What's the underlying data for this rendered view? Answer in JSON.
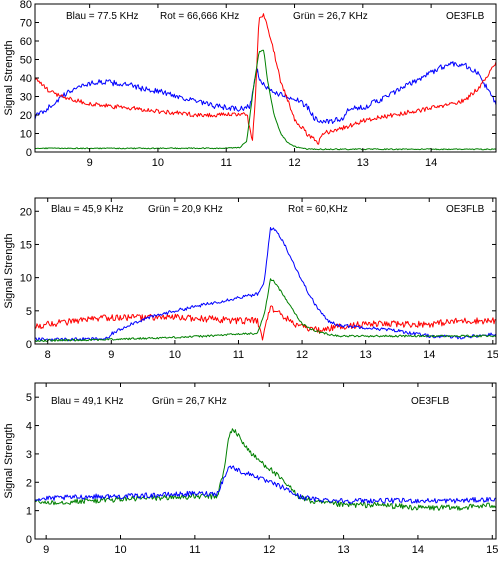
{
  "chart_data": [
    {
      "type": "line",
      "ylabel": "Signal Strength",
      "xlim": [
        8.2,
        14.95
      ],
      "ylim": [
        0,
        80
      ],
      "xticks": [
        9,
        10,
        11,
        12,
        13,
        14
      ],
      "yticks": [
        0,
        10,
        20,
        30,
        40,
        50,
        60,
        70,
        80
      ],
      "annotations": [
        "Blau = 77.5 KHz",
        "Rot = 66,666 KHz",
        "Grün = 26,7 KHz",
        "OE3FLB"
      ],
      "series": [
        {
          "color": "#0000ff",
          "noise": 1.5,
          "x": [
            8.2,
            8.4,
            8.6,
            8.8,
            9.0,
            9.2,
            9.4,
            9.6,
            9.8,
            10.0,
            10.2,
            10.4,
            10.6,
            10.8,
            11.0,
            11.2,
            11.35,
            11.45,
            11.5,
            11.6,
            11.8,
            12.0,
            12.2,
            12.3,
            12.5,
            12.7,
            12.8,
            13.0,
            13.3,
            13.6,
            13.9,
            14.1,
            14.3,
            14.5,
            14.7,
            14.95
          ],
          "y": [
            19,
            24,
            30,
            35,
            37,
            38,
            37,
            36,
            34,
            33,
            31,
            29,
            27,
            25,
            24,
            23,
            25,
            45,
            38,
            34,
            31,
            29,
            24,
            18,
            16,
            18,
            23,
            24,
            29,
            35,
            41,
            45,
            48,
            47,
            42,
            26
          ]
        },
        {
          "color": "#ff0000",
          "noise": 1.2,
          "x": [
            8.2,
            8.4,
            8.6,
            8.8,
            9.0,
            9.2,
            9.5,
            9.8,
            10.0,
            10.3,
            10.6,
            11.0,
            11.3,
            11.38,
            11.42,
            11.48,
            11.55,
            11.65,
            11.8,
            12.0,
            12.2,
            12.35,
            12.4,
            12.6,
            12.8,
            13.0,
            13.3,
            13.6,
            13.9,
            14.2,
            14.5,
            14.7,
            14.95
          ],
          "y": [
            40,
            33,
            30,
            28,
            26,
            25,
            24,
            23,
            22,
            21,
            20,
            20,
            21,
            5,
            25,
            72,
            74,
            62,
            38,
            18,
            9,
            5,
            10,
            12,
            14,
            17,
            19,
            21,
            23,
            25,
            28,
            35,
            48
          ]
        },
        {
          "color": "#008000",
          "noise": 0.3,
          "x": [
            8.2,
            9.0,
            10.0,
            10.8,
            11.0,
            11.2,
            11.3,
            11.4,
            11.48,
            11.55,
            11.6,
            11.7,
            11.8,
            11.9,
            12.0,
            12.1,
            12.2,
            13.0,
            14.0,
            14.95
          ],
          "y": [
            2,
            2,
            2,
            2,
            2,
            2.5,
            6,
            35,
            54,
            55,
            40,
            20,
            10,
            5,
            3,
            2,
            1.5,
            1.5,
            1.5,
            1.5
          ]
        }
      ]
    },
    {
      "type": "line",
      "ylabel": "Signal Strength",
      "xlim": [
        7.8,
        15.05
      ],
      "ylim": [
        0,
        22
      ],
      "xticks": [
        8,
        9,
        10,
        11,
        12,
        13,
        14,
        15
      ],
      "yticks": [
        0,
        5,
        10,
        15,
        20
      ],
      "annotations": [
        "Blau =  45,9 KHz",
        "Grün = 20,9 KHz",
        "Rot = 60,KHz",
        "OE3FLB"
      ],
      "series": [
        {
          "color": "#ff0000",
          "noise": 0.5,
          "x": [
            7.8,
            8.0,
            8.5,
            9.0,
            9.5,
            10.0,
            10.5,
            11.0,
            11.3,
            11.38,
            11.42,
            11.5,
            11.6,
            11.8,
            12.0,
            12.3,
            12.5,
            13.0,
            13.5,
            14.0,
            14.5,
            15.05
          ],
          "y": [
            2.5,
            3,
            3.5,
            4,
            4,
            4,
            3.8,
            3.5,
            3.5,
            0.5,
            3,
            5.5,
            5,
            3.5,
            2.5,
            2,
            2.5,
            3,
            3,
            3,
            3.5,
            3.5
          ]
        },
        {
          "color": "#0000ff",
          "noise": 0.25,
          "x": [
            7.8,
            8.5,
            8.95,
            9.0,
            9.3,
            9.6,
            10.0,
            10.5,
            11.0,
            11.3,
            11.4,
            11.45,
            11.5,
            11.6,
            11.7,
            11.8,
            12.0,
            12.2,
            12.4,
            12.6,
            13.0,
            13.5,
            14.0,
            14.5,
            15.05
          ],
          "y": [
            0.7,
            0.7,
            0.8,
            1.5,
            3,
            4,
            5,
            6,
            7,
            7.5,
            9,
            13,
            17.5,
            17,
            15.5,
            13.5,
            9.5,
            6,
            3.5,
            2.8,
            2.5,
            2,
            1.2,
            1,
            1.5
          ]
        },
        {
          "color": "#008000",
          "noise": 0.15,
          "x": [
            7.8,
            8.5,
            9.0,
            10.0,
            10.5,
            11.0,
            11.3,
            11.42,
            11.5,
            11.55,
            11.7,
            11.9,
            12.0,
            12.2,
            12.4,
            12.6,
            13.0,
            14.0,
            15.05
          ],
          "y": [
            0.5,
            0.6,
            0.7,
            1,
            1.2,
            1.5,
            1.6,
            5,
            9.8,
            9.5,
            7.5,
            4.5,
            3,
            2,
            1.5,
            1.2,
            1.2,
            1.2,
            1.2
          ]
        }
      ]
    },
    {
      "type": "line",
      "ylabel": "Signal Strength",
      "xlim": [
        8.85,
        15.05
      ],
      "ylim": [
        0,
        5.5
      ],
      "xticks": [
        9,
        10,
        11,
        12,
        13,
        14,
        15
      ],
      "yticks": [
        0,
        1,
        2,
        3,
        4,
        5
      ],
      "annotations": [
        "Blau = 49,1 KHz",
        "Grün = 26,7 KHz",
        "OE3FLB"
      ],
      "series": [
        {
          "color": "#008000",
          "noise": 0.1,
          "x": [
            8.85,
            9.2,
            9.6,
            10.0,
            10.5,
            11.0,
            11.3,
            11.4,
            11.45,
            11.5,
            11.6,
            11.7,
            11.8,
            11.9,
            12.0,
            12.2,
            12.4,
            12.6,
            13.0,
            13.5,
            14.0,
            14.5,
            15.05
          ],
          "y": [
            1.3,
            1.3,
            1.35,
            1.4,
            1.45,
            1.5,
            1.5,
            2.5,
            3.5,
            3.9,
            3.6,
            3.2,
            2.9,
            2.7,
            2.5,
            2.0,
            1.5,
            1.3,
            1.2,
            1.2,
            1.1,
            1.1,
            1.2
          ]
        },
        {
          "color": "#0000ff",
          "noise": 0.09,
          "x": [
            8.85,
            9.2,
            9.6,
            10.0,
            10.5,
            11.0,
            11.3,
            11.4,
            11.45,
            11.5,
            11.6,
            11.7,
            11.8,
            11.9,
            12.0,
            12.2,
            12.4,
            12.6,
            13.0,
            13.5,
            14.0,
            14.5,
            15.05
          ],
          "y": [
            1.4,
            1.45,
            1.5,
            1.5,
            1.55,
            1.6,
            1.6,
            2.2,
            2.5,
            2.55,
            2.4,
            2.3,
            2.25,
            2.1,
            2.0,
            1.8,
            1.5,
            1.4,
            1.35,
            1.35,
            1.35,
            1.35,
            1.4
          ]
        }
      ]
    }
  ]
}
